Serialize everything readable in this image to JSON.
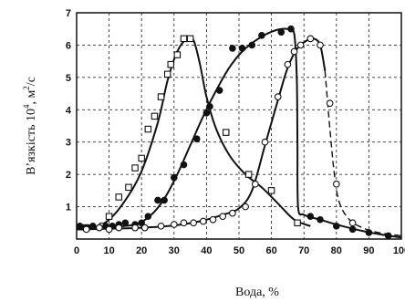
{
  "chart_data": {
    "type": "scatter",
    "title": "",
    "xlabel": "Вода, %",
    "ylabel_main": "В’язкість 10",
    "ylabel_exp": "4",
    "ylabel_unit": ", м",
    "ylabel_unit_exp": "2",
    "ylabel_tail": "/с",
    "xlim": [
      0,
      100
    ],
    "ylim": [
      0,
      7
    ],
    "x_ticks": [
      "0",
      "10",
      "20",
      "30",
      "40",
      "50",
      "60",
      "70",
      "80",
      "90",
      "100"
    ],
    "y_ticks": [
      "1",
      "2",
      "3",
      "4",
      "5",
      "6",
      "7"
    ],
    "grid": true,
    "legend": "none",
    "series": [
      {
        "marker": "open-square",
        "points": [
          [
            3,
            0.35
          ],
          [
            8,
            0.4
          ],
          [
            10,
            0.7
          ],
          [
            13,
            1.3
          ],
          [
            16,
            1.6
          ],
          [
            18,
            2.2
          ],
          [
            20,
            2.5
          ],
          [
            22,
            3.4
          ],
          [
            24,
            3.8
          ],
          [
            26,
            4.4
          ],
          [
            28,
            5.1
          ],
          [
            29,
            5.4
          ],
          [
            31,
            5.7
          ],
          [
            33,
            6.2
          ],
          [
            35,
            6.2
          ],
          [
            46,
            3.3
          ],
          [
            53,
            2.0
          ],
          [
            60,
            1.5
          ],
          [
            68,
            0.5
          ]
        ],
        "curve": [
          [
            0,
            0.3
          ],
          [
            5,
            0.33
          ],
          [
            10,
            0.6
          ],
          [
            15,
            1.2
          ],
          [
            20,
            2.1
          ],
          [
            25,
            3.6
          ],
          [
            28,
            4.9
          ],
          [
            31,
            5.8
          ],
          [
            34,
            6.2
          ],
          [
            36,
            6.15
          ],
          [
            38,
            5.4
          ],
          [
            40,
            4.4
          ],
          [
            43,
            3.4
          ],
          [
            47,
            2.6
          ],
          [
            52,
            2.0
          ],
          [
            57,
            1.6
          ],
          [
            62,
            1.1
          ],
          [
            67,
            0.6
          ],
          [
            72,
            0.4
          ]
        ]
      },
      {
        "marker": "filled-circle",
        "points": [
          [
            1,
            0.4
          ],
          [
            3,
            0.35
          ],
          [
            5,
            0.4
          ],
          [
            7,
            0.35
          ],
          [
            9,
            0.4
          ],
          [
            11,
            0.4
          ],
          [
            13,
            0.45
          ],
          [
            15,
            0.5
          ],
          [
            18,
            0.45
          ],
          [
            20,
            0.5
          ],
          [
            22,
            0.7
          ],
          [
            25,
            1.2
          ],
          [
            27,
            1.2
          ],
          [
            30,
            1.9
          ],
          [
            33,
            2.3
          ],
          [
            37,
            3.1
          ],
          [
            40,
            3.9
          ],
          [
            41,
            4.1
          ],
          [
            44,
            4.6
          ],
          [
            48,
            5.9
          ],
          [
            51,
            5.9
          ],
          [
            54,
            6.0
          ],
          [
            57,
            6.3
          ],
          [
            63,
            6.4
          ],
          [
            66,
            6.5
          ],
          [
            72,
            0.7
          ],
          [
            75,
            0.6
          ],
          [
            80,
            0.4
          ],
          [
            85,
            0.3
          ],
          [
            90,
            0.2
          ],
          [
            96,
            0.1
          ]
        ],
        "curve": [
          [
            0,
            0.35
          ],
          [
            10,
            0.38
          ],
          [
            18,
            0.45
          ],
          [
            23,
            0.75
          ],
          [
            27,
            1.25
          ],
          [
            31,
            2.0
          ],
          [
            35,
            2.9
          ],
          [
            39,
            3.8
          ],
          [
            43,
            4.6
          ],
          [
            47,
            5.3
          ],
          [
            51,
            5.8
          ],
          [
            56,
            6.2
          ],
          [
            61,
            6.45
          ],
          [
            65,
            6.5
          ],
          [
            67,
            6.35
          ],
          [
            67.8,
            5.0
          ],
          [
            68,
            3.0
          ],
          [
            68.2,
            1.0
          ],
          [
            70,
            0.75
          ],
          [
            75,
            0.6
          ],
          [
            80,
            0.45
          ],
          [
            88,
            0.25
          ],
          [
            95,
            0.12
          ],
          [
            100,
            0.05
          ]
        ]
      },
      {
        "marker": "open-circle",
        "points": [
          [
            3,
            0.3
          ],
          [
            7,
            0.35
          ],
          [
            10,
            0.3
          ],
          [
            13,
            0.35
          ],
          [
            18,
            0.35
          ],
          [
            21,
            0.35
          ],
          [
            26,
            0.4
          ],
          [
            30,
            0.45
          ],
          [
            33,
            0.5
          ],
          [
            36,
            0.5
          ],
          [
            39,
            0.55
          ],
          [
            42,
            0.6
          ],
          [
            45,
            0.7
          ],
          [
            48,
            0.8
          ],
          [
            52,
            1.0
          ],
          [
            55,
            1.7
          ],
          [
            58,
            3.0
          ],
          [
            62,
            4.4
          ],
          [
            65,
            5.4
          ],
          [
            67,
            5.8
          ],
          [
            69,
            6.0
          ],
          [
            72,
            6.2
          ],
          [
            75,
            6.0
          ],
          [
            78,
            4.2
          ],
          [
            80,
            1.7
          ],
          [
            85,
            0.5
          ]
        ],
        "curve": [
          [
            0,
            0.3
          ],
          [
            10,
            0.32
          ],
          [
            20,
            0.35
          ],
          [
            30,
            0.42
          ],
          [
            38,
            0.55
          ],
          [
            45,
            0.75
          ],
          [
            50,
            0.95
          ],
          [
            54,
            1.5
          ],
          [
            58,
            2.9
          ],
          [
            62,
            4.3
          ],
          [
            65,
            5.3
          ],
          [
            68,
            5.9
          ],
          [
            71,
            6.15
          ],
          [
            73,
            6.2
          ],
          [
            75,
            6.0
          ],
          [
            76.5,
            5.2
          ]
        ],
        "dashed_tail": [
          [
            76.5,
            5.2
          ],
          [
            78,
            3.4
          ],
          [
            79.5,
            1.9
          ],
          [
            81,
            1.1
          ],
          [
            84,
            0.6
          ],
          [
            88,
            0.35
          ],
          [
            93,
            0.2
          ],
          [
            100,
            0.1
          ]
        ]
      }
    ]
  }
}
